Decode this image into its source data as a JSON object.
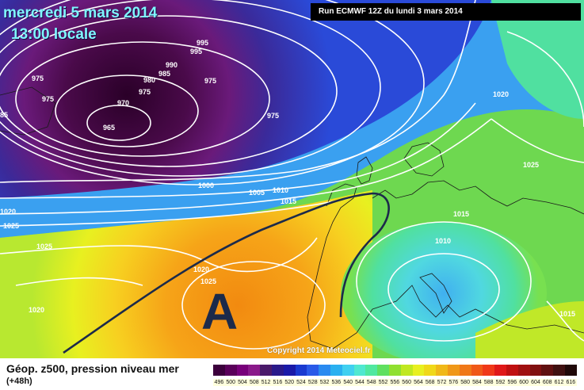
{
  "map": {
    "date_text": "mercredi 5 mars 2014",
    "time_text": "13:00 locale",
    "run_text": "Run ECMWF 12Z du lundi 3 mars 2014",
    "copyright": "Copyright 2014 Meteociel.fr",
    "high_pressure_label": "A",
    "isobar_labels": [
      {
        "text": "995"
      },
      {
        "text": "995"
      },
      {
        "text": "990"
      },
      {
        "text": "985"
      },
      {
        "text": "980"
      },
      {
        "text": "975"
      },
      {
        "text": "975"
      },
      {
        "text": "975"
      },
      {
        "text": "975"
      },
      {
        "text": "975"
      },
      {
        "text": "970"
      },
      {
        "text": "965"
      },
      {
        "text": "975"
      },
      {
        "text": "85"
      },
      {
        "text": "1000"
      },
      {
        "text": "1005"
      },
      {
        "text": "1010"
      },
      {
        "text": "1015"
      },
      {
        "text": "1020"
      },
      {
        "text": "1025"
      },
      {
        "text": "1025"
      },
      {
        "text": "1020"
      },
      {
        "text": "1025"
      },
      {
        "text": "1020"
      },
      {
        "text": "1020"
      },
      {
        "text": "1025"
      },
      {
        "text": "1015"
      },
      {
        "text": "1010"
      },
      {
        "text": "1015"
      },
      {
        "text": "1020"
      }
    ]
  },
  "legend": {
    "title": "Géop. z500, pression niveau mer",
    "subtitle": "(+48h)",
    "scale_values": [
      "496",
      "500",
      "504",
      "508",
      "512",
      "516",
      "520",
      "524",
      "528",
      "532",
      "536",
      "540",
      "544",
      "548",
      "552",
      "556",
      "560",
      "564",
      "568",
      "572",
      "576",
      "580",
      "584",
      "588",
      "592",
      "596",
      "600",
      "604",
      "608",
      "612",
      "616"
    ],
    "scale_colors": [
      "#3c003c",
      "#5a005a",
      "#78007a",
      "#8a1a8a",
      "#4a1a6a",
      "#2a1a8a",
      "#1a1aa8",
      "#1a3ad0",
      "#2a5ae8",
      "#2a8af0",
      "#2ab0f0",
      "#40d0f0",
      "#50e8d0",
      "#50e8a0",
      "#60e060",
      "#90e030",
      "#c0e820",
      "#e8f020",
      "#f0d818",
      "#f0b818",
      "#f09818",
      "#f07818",
      "#f05818",
      "#f03818",
      "#e01818",
      "#c01010",
      "#a01010",
      "#801010",
      "#601010",
      "#401010",
      "#200808"
    ]
  }
}
